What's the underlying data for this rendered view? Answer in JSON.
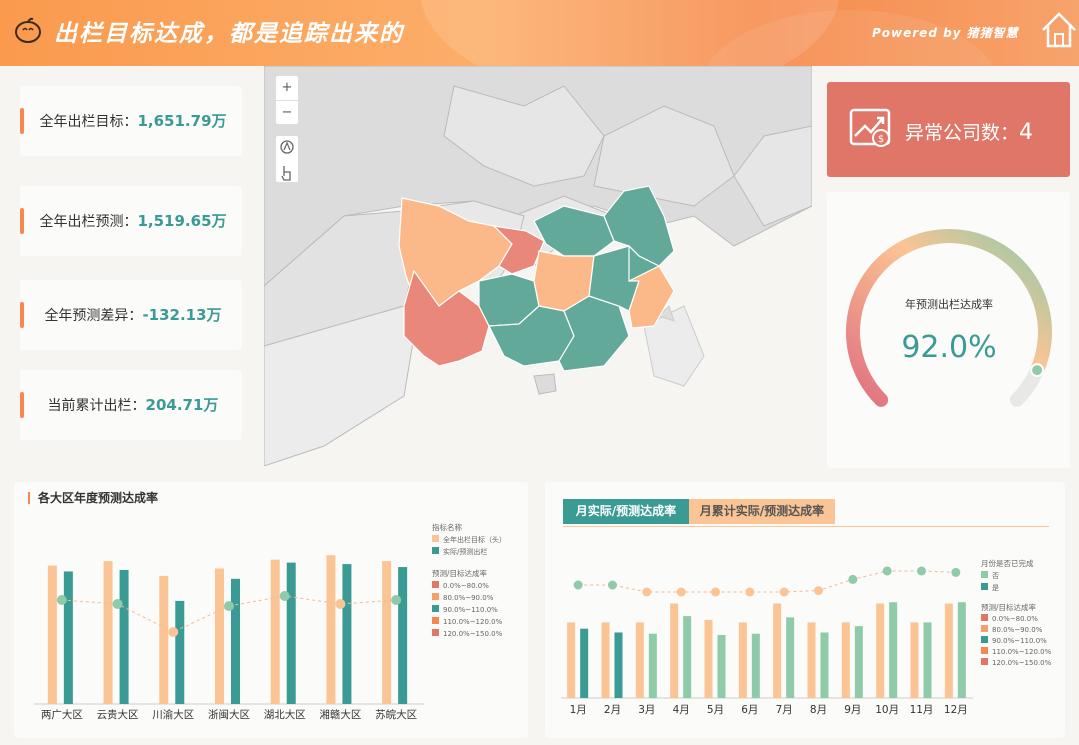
{
  "header": {
    "title": "出栏目标达成，都是追踪出来的",
    "powered": "Powered by 猪猪智慧"
  },
  "kpis": [
    {
      "label": "全年出栏目标：",
      "value": "1,651.79万"
    },
    {
      "label": "全年出栏预测：",
      "value": "1,519.65万"
    },
    {
      "label": "全年预测差异：",
      "value": "-132.13万"
    },
    {
      "label": "当前累计出栏：",
      "value": "204.71万"
    }
  ],
  "map_controls": {
    "zoom_in": "+",
    "zoom_out": "−"
  },
  "abnormal": {
    "label": "异常公司数：",
    "value": "4"
  },
  "gauge": {
    "title": "年预测出栏达成率",
    "value": "92.0%",
    "fraction": 0.92
  },
  "colors": {
    "teal": "#3a9a94",
    "orange": "#fbc494",
    "light_teal": "#8fcaa9",
    "red": "#e07668",
    "accent": "#f5874f"
  },
  "chart_region": {
    "title": "各大区年度预测达成率",
    "legend_title_metric": "指标名称",
    "legend_metric": [
      "全年出栏目标（头）",
      "实际/预测出栏"
    ],
    "legend_title_rate": "预测/目标达成率",
    "legend_rate": [
      "0.0%~80.0%",
      "80.0%~90.0%",
      "90.0%~110.0%",
      "110.0%~120.0%",
      "120.0%~150.0%"
    ],
    "chart_data": {
      "type": "bar",
      "categories": [
        "两广大区",
        "云贵大区",
        "川渝大区",
        "浙闽大区",
        "湖北大区",
        "湘赣大区",
        "苏皖大区"
      ],
      "series": [
        {
          "name": "全年出栏目标（头）",
          "values": [
            94,
            97,
            87,
            92,
            98,
            101,
            97
          ]
        },
        {
          "name": "实际/预测出栏",
          "values": [
            90,
            91,
            70,
            85,
            96,
            95,
            93
          ]
        }
      ],
      "rate_line": [
        0.96,
        0.94,
        0.8,
        0.93,
        0.98,
        0.94,
        0.96
      ],
      "rate_class": [
        "green",
        "green",
        "orange",
        "green",
        "green",
        "orange",
        "green"
      ]
    }
  },
  "chart_month": {
    "tabs": [
      "月实际/预测达成率",
      "月累计实际/预测达成率"
    ],
    "legend_title_a": "月份是否已完成",
    "legend_a": [
      "否",
      "是"
    ],
    "legend_title_b": "预测/目标达成率",
    "legend_b": [
      "0.0%~80.0%",
      "80.0%~90.0%",
      "90.0%~110.0%",
      "110.0%~120.0%",
      "120.0%~150.0%"
    ],
    "chart_data": {
      "type": "bar",
      "categories": [
        "1月",
        "2月",
        "3月",
        "4月",
        "5月",
        "6月",
        "7月",
        "8月",
        "9月",
        "10月",
        "11月",
        "12月"
      ],
      "series": [
        {
          "values": [
            60,
            60,
            60,
            75,
            62,
            60,
            75,
            60,
            60,
            75,
            60,
            75
          ]
        },
        {
          "values": [
            55,
            52,
            51,
            65,
            50,
            51,
            64,
            52,
            57,
            76,
            60,
            76
          ]
        }
      ],
      "completed": [
        true,
        true,
        false,
        false,
        false,
        false,
        false,
        false,
        false,
        false,
        false,
        false
      ],
      "rate_line": [
        0.95,
        0.95,
        0.9,
        0.9,
        0.9,
        0.9,
        0.9,
        0.91,
        0.99,
        1.05,
        1.05,
        1.04
      ],
      "rate_class": [
        "green",
        "green",
        "orange",
        "orange",
        "orange",
        "orange",
        "orange",
        "orange",
        "green",
        "green",
        "green",
        "green"
      ]
    }
  }
}
